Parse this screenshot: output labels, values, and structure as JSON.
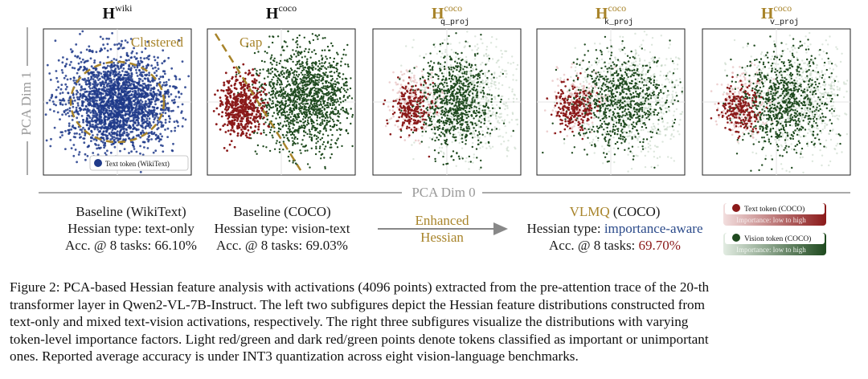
{
  "panels": [
    {
      "title_base": "H",
      "title_sup": "wiki",
      "title_sub": "",
      "gold": false,
      "annotation": "Clustered"
    },
    {
      "title_base": "H",
      "title_sup": "coco",
      "title_sub": "",
      "gold": false,
      "annotation": "Gap"
    },
    {
      "title_base": "H",
      "title_sup": "coco",
      "title_sub": "q_proj",
      "gold": true,
      "annotation": ""
    },
    {
      "title_base": "H",
      "title_sup": "coco",
      "title_sub": "k_proj",
      "gold": true,
      "annotation": ""
    },
    {
      "title_base": "H",
      "title_sup": "coco",
      "title_sub": "v_proj",
      "gold": true,
      "annotation": ""
    }
  ],
  "axes": {
    "y_label": "PCA Dim 1",
    "x_label": "PCA Dim 0"
  },
  "inset_legend": {
    "label": "Text token (WikiText)",
    "color": "#1f3a8a"
  },
  "legend": {
    "text_token": {
      "label": "Text token (COCO)",
      "bar_label": "Importance: low to high",
      "color": "#8b1a1a"
    },
    "vision_token": {
      "label": "Vision token (COCO)",
      "bar_label": "Importance: low to high",
      "color": "#1f4a1f"
    }
  },
  "descriptions": {
    "wiki": {
      "title": "Baseline (WikiText)",
      "hessian_prefix": "Hessian type: ",
      "hessian_value": "text-only",
      "acc_prefix": "Acc. @ 8 tasks: ",
      "acc_value": "66.10%"
    },
    "coco": {
      "title": "Baseline (COCO)",
      "hessian_prefix": "Hessian type: ",
      "hessian_value": "vision-text",
      "acc_prefix": "Acc. @ 8 tasks: ",
      "acc_value": "69.03%"
    },
    "arrow_label_1": "Enhanced",
    "arrow_label_2": "Hessian",
    "vlmq": {
      "title_highlight": "VLMQ",
      "title_rest": " (COCO)",
      "hessian_prefix": "Hessian type: ",
      "hessian_value": "importance-aware",
      "acc_prefix": "Acc. @ 8 tasks: ",
      "acc_value": "69.70%"
    }
  },
  "caption_lines": [
    "Figure 2: PCA-based Hessian feature analysis with activations (4096 points) extracted from the pre-attention trace of the 20-th",
    "transformer layer in Qwen2-VL-7B-Instruct. The left two subfigures depict the Hessian feature distributions constructed from",
    "text-only and mixed text-vision activations, respectively. The right three subfigures visualize the distributions with varying",
    "token-level importance factors. Light red/green and dark red/green points denote tokens classified as important or unimportant",
    "ones. Reported average accuracy is under INT3 quantization across eight vision-language benchmarks."
  ],
  "colors": {
    "blue": "#1f3a8a",
    "dark_red": "#8b1a1a",
    "dark_green": "#1f4a1f",
    "gold": "#a8842a",
    "axis_gray": "#999999"
  }
}
